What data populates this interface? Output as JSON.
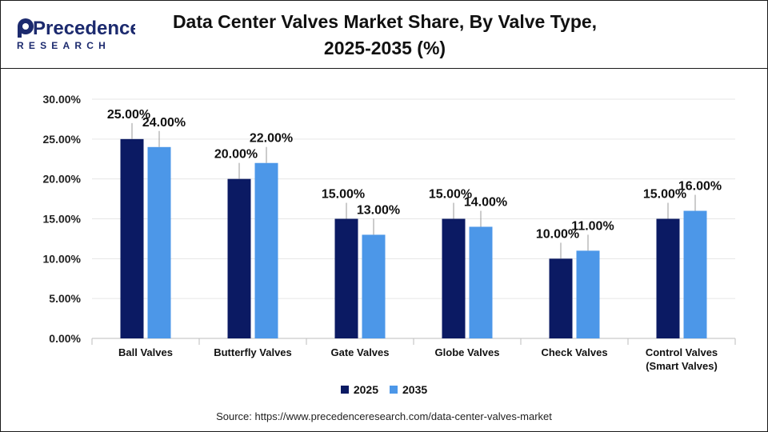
{
  "brand": {
    "logo_name": "Precedence",
    "logo_sub": "RESEARCH",
    "colors": {
      "primary": "#1c2a6e",
      "accent": "#2e7ad1"
    }
  },
  "title_lines": [
    "Data Center Valves Market Share, By Valve Type,",
    "2025-2035 (%)"
  ],
  "source": "Source: https://www.precedenceresearch.com/data-center-valves-market",
  "chart_data": {
    "type": "bar",
    "categories": [
      [
        "Ball Valves"
      ],
      [
        "Butterfly Valves"
      ],
      [
        "Gate Valves"
      ],
      [
        "Globe Valves"
      ],
      [
        "Check Valves"
      ],
      [
        "Control Valves",
        "(Smart Valves)"
      ]
    ],
    "series": [
      {
        "name": "2025",
        "color": "#0b1a63",
        "values": [
          25,
          20,
          15,
          15,
          10,
          15
        ],
        "labels": [
          "25.00%",
          "20.00%",
          "15.00%",
          "15.00%",
          "10.00%",
          "15.00%"
        ]
      },
      {
        "name": "2035",
        "color": "#4c97e8",
        "values": [
          24,
          22,
          13,
          14,
          11,
          16
        ],
        "labels": [
          "24.00%",
          "22.00%",
          "13.00%",
          "14.00%",
          "11.00%",
          "16.00%"
        ]
      }
    ],
    "ylim": [
      0,
      30
    ],
    "yticks": [
      0,
      5,
      10,
      15,
      20,
      25,
      30
    ],
    "ytick_labels": [
      "0.00%",
      "5.00%",
      "10.00%",
      "15.00%",
      "20.00%",
      "25.00%",
      "30.00%"
    ],
    "grid": true,
    "legend_position": "bottom"
  }
}
